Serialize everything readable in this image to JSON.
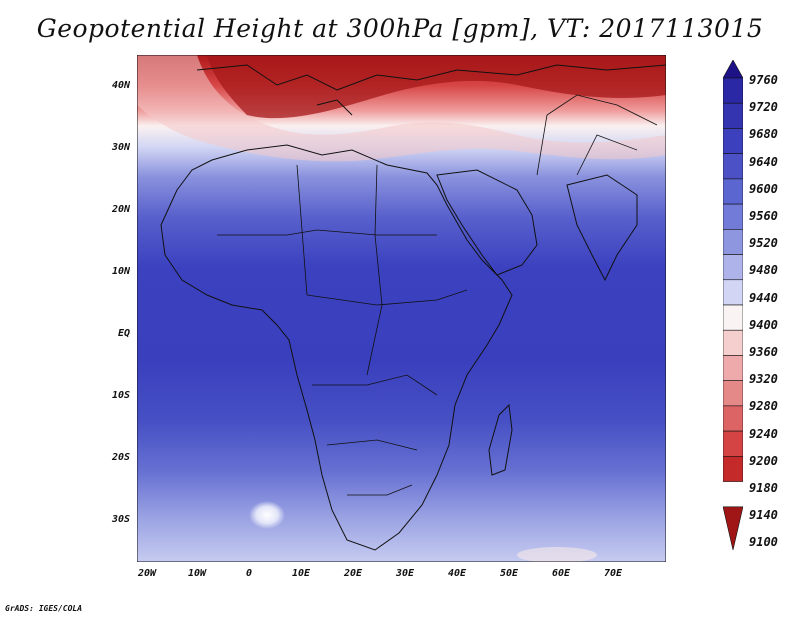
{
  "title": "Geopotential Height at 300hPa [gpm], VT: 2017113015",
  "credit": "GrADS: IGES/COLA",
  "lat_labels": [
    "40N",
    "30N",
    "20N",
    "10N",
    "EQ",
    "10S",
    "20S",
    "30S"
  ],
  "lon_labels": [
    "20W",
    "10W",
    "0",
    "10E",
    "20E",
    "30E",
    "40E",
    "50E",
    "60E",
    "70E"
  ],
  "colorbar": {
    "levels": [
      "9760",
      "9720",
      "9680",
      "9640",
      "9600",
      "9560",
      "9520",
      "9480",
      "9440",
      "9400",
      "9360",
      "9320",
      "9280",
      "9240",
      "9200",
      "9180",
      "9140",
      "9100"
    ],
    "colors": [
      "#1e1287",
      "#2a28a5",
      "#3434b0",
      "#3c40bd",
      "#4c52c6",
      "#5c66d0",
      "#727cd8",
      "#8e96e0",
      "#aeb4ea",
      "#d2d6f4",
      "#faf3f3",
      "#f5cece",
      "#eeaaaa",
      "#e58888",
      "#dd6464",
      "#d44444",
      "#c42a2a",
      "#a01616"
    ]
  }
}
